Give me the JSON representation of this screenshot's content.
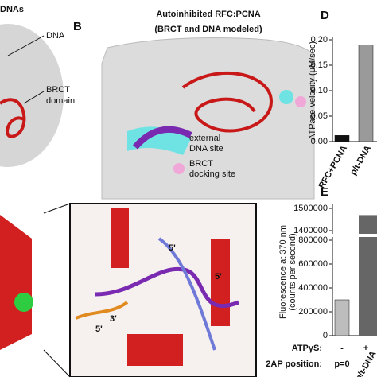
{
  "panel_a": {
    "title_fragment": "DNAs",
    "dna_label": "DNA",
    "brct_lines": [
      "BRCT",
      "domain"
    ]
  },
  "panel_b": {
    "letter": "B",
    "title": "Autoinhibited RFC:PCNA",
    "subtitle": "(BRCT and DNA modeled)",
    "legend": [
      {
        "lines": [
          "external",
          "DNA site"
        ],
        "color": "#6fe3e3"
      },
      {
        "lines": [
          "BRCT",
          "docking site"
        ],
        "color": "#f0a8d8"
      }
    ]
  },
  "panel_c": {
    "end_labels": [
      "5'",
      "5'",
      "3'",
      "5'"
    ]
  },
  "panel_d": {
    "letter": "D",
    "type": "bar",
    "y_label": "ATPase velocity (μM/sec)",
    "categories": [
      "RFC+PCNA",
      "p/t-DNA"
    ],
    "values": [
      0.012,
      0.19
    ],
    "colors": [
      "#111111",
      "#9a9a9a"
    ],
    "ylim": [
      0,
      0.2
    ],
    "yticks": [
      {
        "value": 0,
        "label": "0.00"
      },
      {
        "value": 0.05,
        "label": "0.05"
      },
      {
        "value": 0.1,
        "label": "0.10"
      },
      {
        "value": 0.15,
        "label": "0.15"
      },
      {
        "value": 0.2,
        "label": "0.20"
      }
    ]
  },
  "panel_e": {
    "letter": "E",
    "type": "broken-bar",
    "y_label_lines": [
      "Fluorescence at 370 nm",
      "(counts per second)"
    ],
    "values": [
      300000,
      1470000
    ],
    "colors": [
      "#bdbdbd",
      "#666666"
    ],
    "ylim_lower": [
      0,
      800000
    ],
    "yticks_lower": [
      0,
      200000,
      400000,
      600000,
      800000
    ],
    "ylim_upper": [
      1400000,
      1500000
    ],
    "yticks_upper": [
      1400000,
      1500000
    ],
    "rows": [
      {
        "label": "ATPγS:",
        "cells": [
          "-",
          "+"
        ]
      },
      {
        "label": "2AP position:",
        "cells": [
          "p=0"
        ]
      }
    ],
    "category_fragment": "p/t-DNA"
  }
}
